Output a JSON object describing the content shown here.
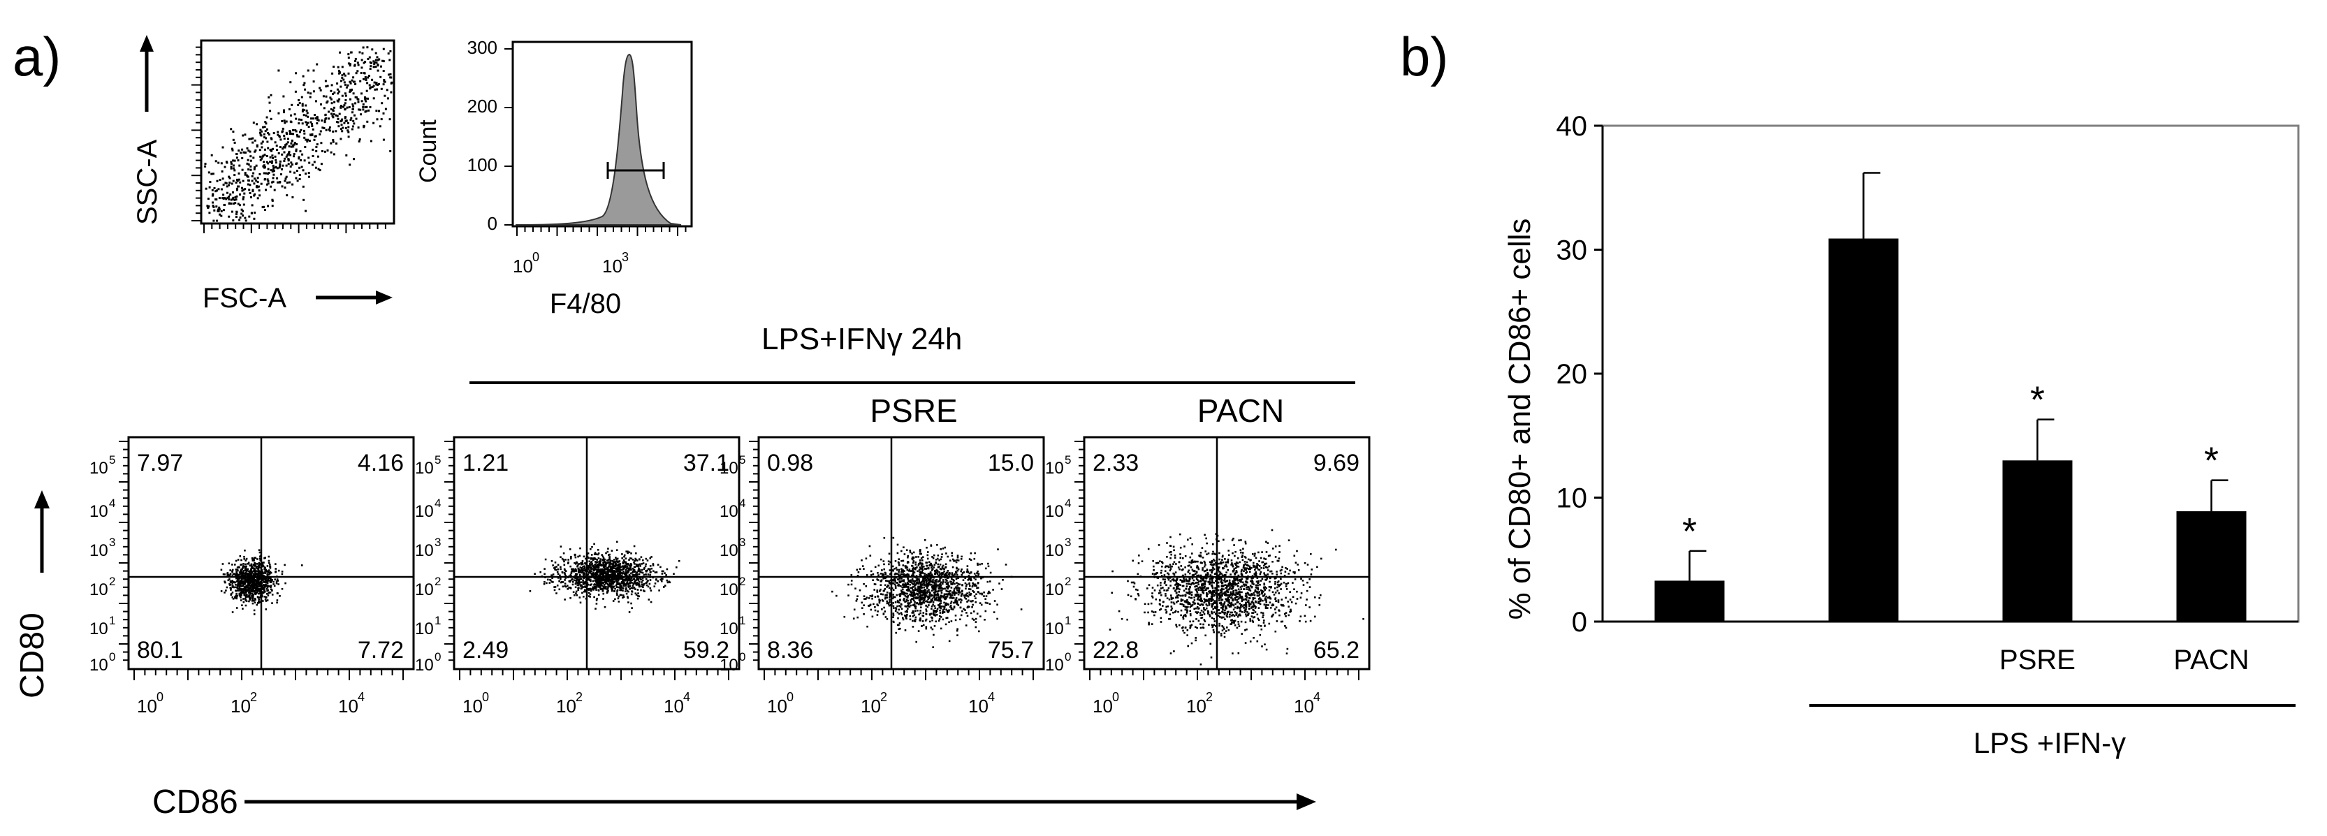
{
  "panel_a_label": "a)",
  "panel_b_label": "b)",
  "scatter_gate": {
    "xlabel": "FSC-A",
    "ylabel": "SSC-A"
  },
  "histogram": {
    "xlabel": "F4/80",
    "ylabel": "Count",
    "y_ticks": [
      "0",
      "100",
      "200",
      "300"
    ],
    "x_ticks": [
      {
        "base": "10",
        "exp": "0"
      },
      {
        "base": "10",
        "exp": "3"
      }
    ]
  },
  "treatment_header": "LPS+IFNγ 24h",
  "cd80_label": "CD80",
  "cd86_label": "CD86",
  "flow_axis_ticks": [
    {
      "base": "10",
      "exp": "0"
    },
    {
      "base": "10",
      "exp": "1"
    },
    {
      "base": "10",
      "exp": "2"
    },
    {
      "base": "10",
      "exp": "3"
    },
    {
      "base": "10",
      "exp": "4"
    },
    {
      "base": "10",
      "exp": "5"
    }
  ],
  "flow_x_ticks": [
    {
      "base": "10",
      "exp": "0"
    },
    {
      "base": "10",
      "exp": "2"
    },
    {
      "base": "10",
      "exp": "4"
    }
  ],
  "flow_plots": [
    {
      "label": "",
      "q_ul": "7.97",
      "q_ur": "4.16",
      "q_ll": "80.1",
      "q_lr": "7.72"
    },
    {
      "label": "",
      "q_ul": "1.21",
      "q_ur": "37.1",
      "q_ll": "2.49",
      "q_lr": "59.2"
    },
    {
      "label": "PSRE",
      "q_ul": "0.98",
      "q_ur": "15.0",
      "q_ll": "8.36",
      "q_lr": "75.7"
    },
    {
      "label": "PACN",
      "q_ul": "2.33",
      "q_ur": "9.69",
      "q_ll": "22.8",
      "q_lr": "65.2"
    }
  ],
  "chart_data": {
    "type": "bar",
    "categories": [
      "",
      "",
      "PSRE",
      "PACN"
    ],
    "values": [
      3.3,
      30.9,
      13.0,
      8.9
    ],
    "errors": [
      2.4,
      5.3,
      3.3,
      2.5
    ],
    "significance": [
      "*",
      "",
      "*",
      "*"
    ],
    "ylabel": "% of CD80+ and CD86+ cells",
    "ylim": [
      0,
      40
    ],
    "y_ticks": [
      "0",
      "10",
      "20",
      "30",
      "40"
    ],
    "group_label": "LPS +IFN-γ",
    "bar_color": "#000000",
    "grid": false
  }
}
